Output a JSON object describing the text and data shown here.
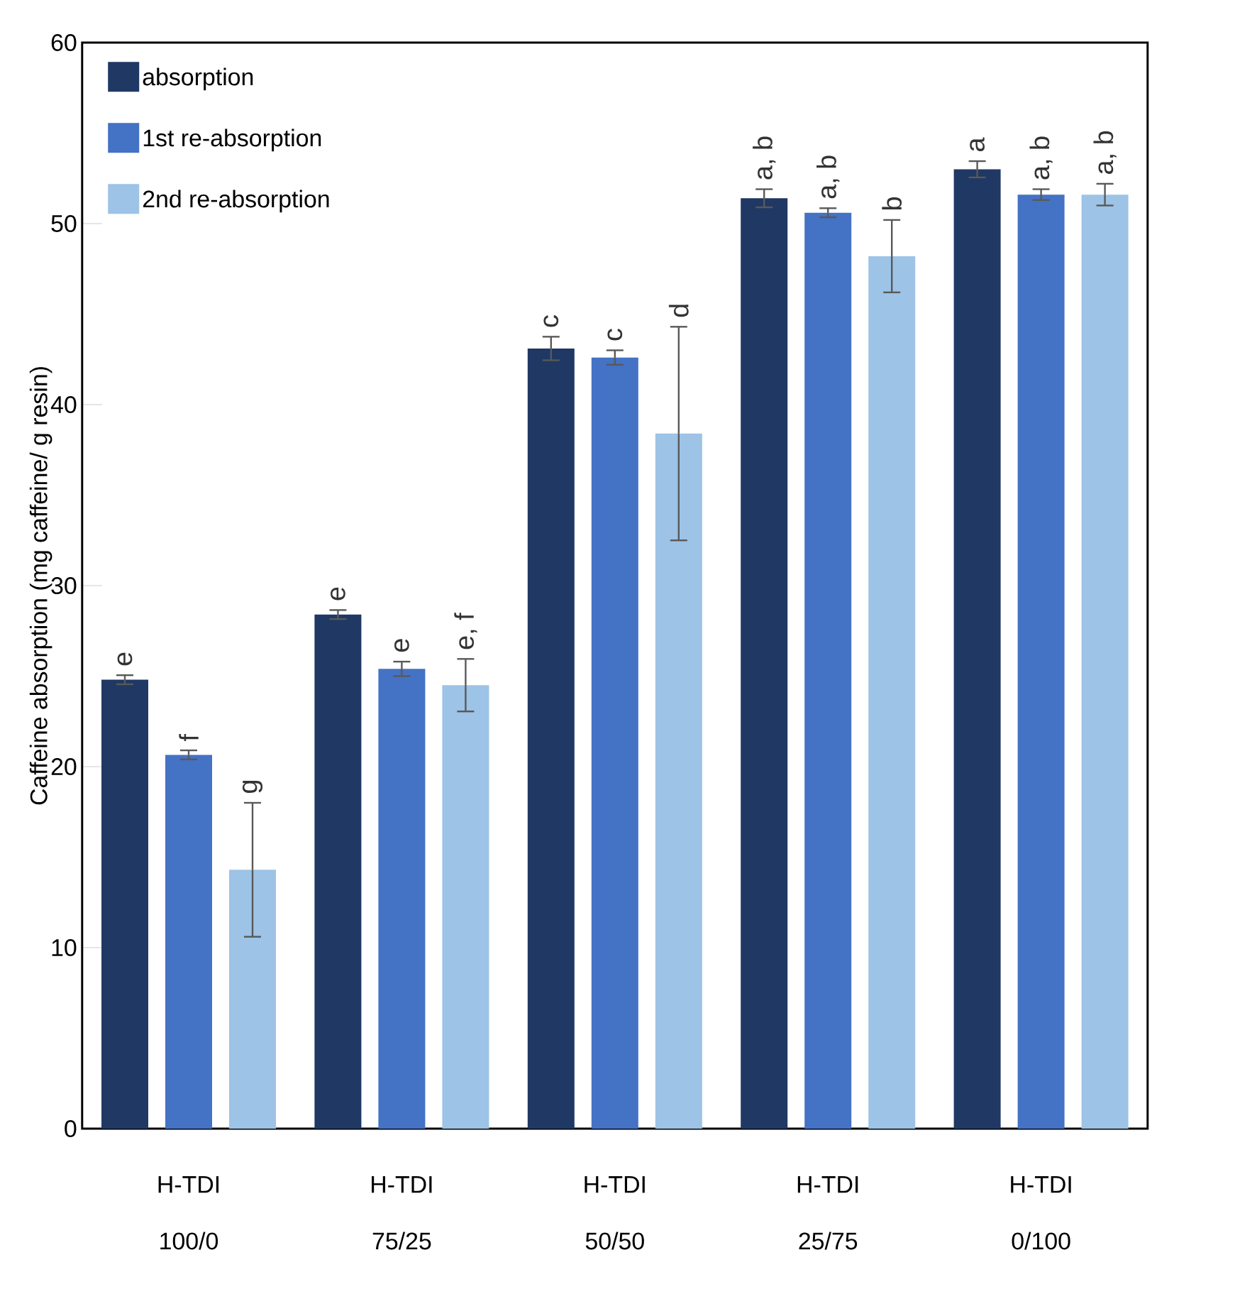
{
  "chart_data": {
    "type": "bar",
    "ylabel": "Caffeine absorption (mg caffeine/ g resin)",
    "categories": [
      "H-TDI 100/0",
      "H-TDI 75/25",
      "H-TDI 50/50",
      "H-TDI 25/75",
      "H-TDI 0/100"
    ],
    "series": [
      {
        "name": "absorption",
        "color": "#203864",
        "values": [
          24.8,
          28.4,
          43.1,
          51.4,
          53.0
        ],
        "errors": [
          0.25,
          0.25,
          0.65,
          0.5,
          0.45
        ]
      },
      {
        "name": "1st re-absorption",
        "color": "#4472c4",
        "values": [
          20.65,
          25.4,
          42.6,
          50.6,
          51.6
        ],
        "errors": [
          0.25,
          0.4,
          0.4,
          0.25,
          0.3
        ]
      },
      {
        "name": "2nd re-absorption",
        "color": "#9dc3e6",
        "values": [
          14.3,
          24.5,
          38.4,
          48.2,
          51.6
        ],
        "errors": [
          3.7,
          1.45,
          5.9,
          2.0,
          0.6
        ]
      }
    ],
    "ylim": [
      0,
      60
    ],
    "yticks": [
      0,
      10,
      20,
      30,
      40,
      50,
      60
    ],
    "grid": false,
    "legend": "top left",
    "annotations": [
      "e",
      "f",
      "g",
      "e",
      "e",
      "e, f",
      "c",
      "c",
      "d",
      "a, b",
      "a, b",
      "b",
      "a",
      "a, b",
      "a, b"
    ]
  }
}
